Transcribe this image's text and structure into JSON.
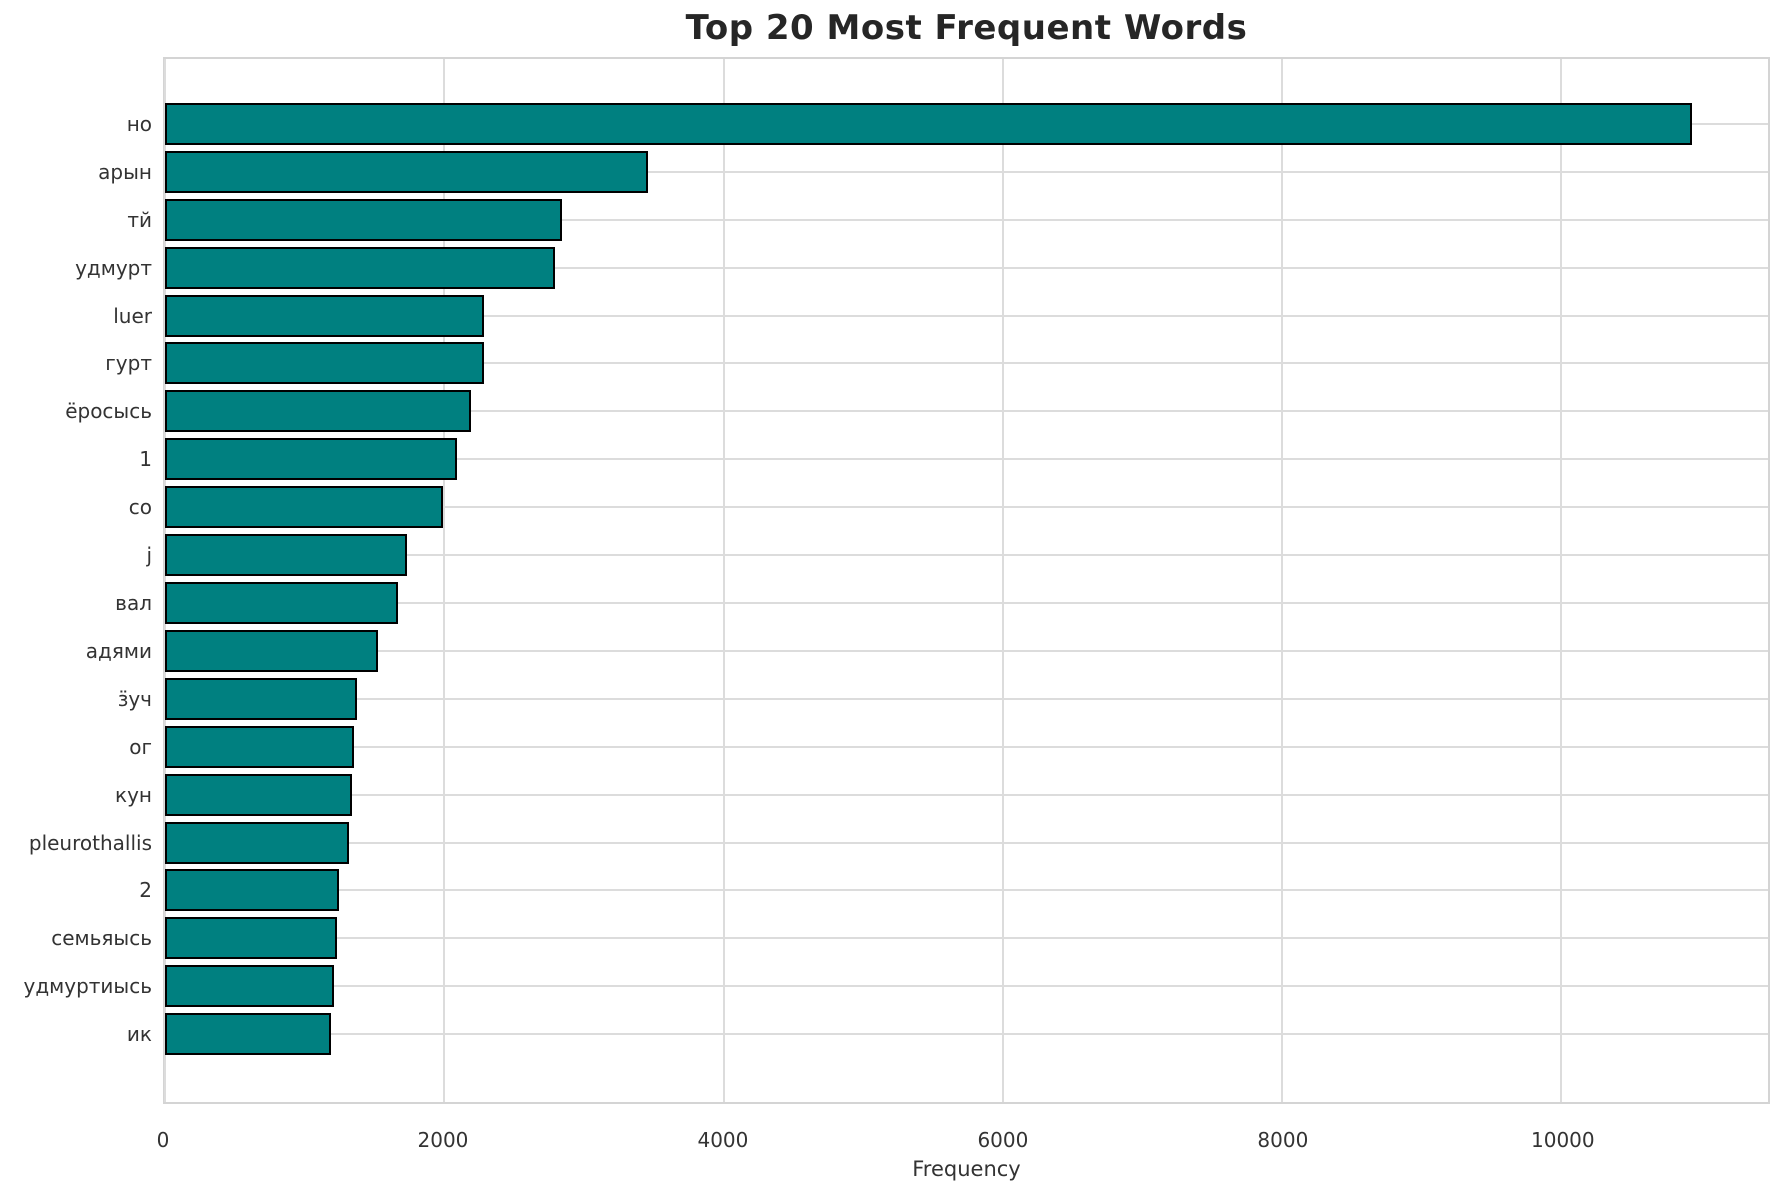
{
  "title": "Top 20 Most Frequent Words",
  "chart_data": {
    "type": "bar",
    "orientation": "horizontal",
    "title": "Top 20 Most Frequent Words",
    "xlabel": "Frequency",
    "ylabel": "",
    "categories": [
      "но",
      "арын",
      "тй",
      "удмурт",
      "luer",
      "гурт",
      "ёросысь",
      "1",
      "со",
      "j",
      "вал",
      "адями",
      "ӟуч",
      "ог",
      "кун",
      "pleurothallis",
      "2",
      "семьяысь",
      "удмуртиысь",
      "ик"
    ],
    "values": [
      10935,
      3460,
      2840,
      2790,
      2285,
      2283,
      2190,
      2090,
      1990,
      1732,
      1671,
      1524,
      1377,
      1353,
      1341,
      1317,
      1243,
      1233,
      1213,
      1190
    ],
    "xlim": [
      0,
      11480
    ],
    "xticks": [
      0,
      2000,
      4000,
      6000,
      8000,
      10000
    ],
    "grid": true,
    "legend": false,
    "bar_color": "#008080",
    "bar_edge_color": "#000000",
    "grid_color": "#dcdcdc",
    "background": "#ffffff"
  }
}
